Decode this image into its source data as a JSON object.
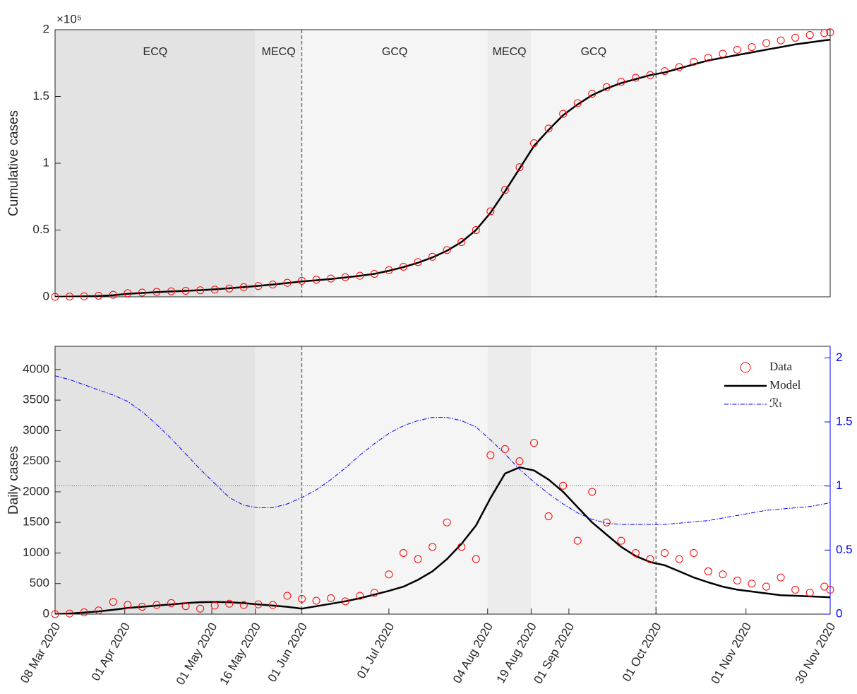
{
  "chart_data": [
    {
      "type": "scatter-line",
      "ylabel": "Cumulative cases",
      "y_multiplier": "×10⁵",
      "x": [
        "2020-03-08",
        "2020-03-13",
        "2020-03-18",
        "2020-03-23",
        "2020-03-28",
        "2020-04-02",
        "2020-04-07",
        "2020-04-12",
        "2020-04-17",
        "2020-04-22",
        "2020-04-27",
        "2020-05-02",
        "2020-05-07",
        "2020-05-12",
        "2020-05-17",
        "2020-05-22",
        "2020-05-27",
        "2020-06-01",
        "2020-06-06",
        "2020-06-11",
        "2020-06-16",
        "2020-06-21",
        "2020-06-26",
        "2020-07-01",
        "2020-07-06",
        "2020-07-11",
        "2020-07-16",
        "2020-07-21",
        "2020-07-26",
        "2020-07-31",
        "2020-08-05",
        "2020-08-10",
        "2020-08-15",
        "2020-08-20",
        "2020-08-25",
        "2020-08-30",
        "2020-09-04",
        "2020-09-09",
        "2020-09-14",
        "2020-09-19",
        "2020-09-24",
        "2020-09-29",
        "2020-10-04",
        "2020-10-09",
        "2020-10-14",
        "2020-10-19",
        "2020-10-24",
        "2020-10-29",
        "2020-11-03",
        "2020-11-08",
        "2020-11-13",
        "2020-11-18",
        "2020-11-23",
        "2020-11-28",
        "2020-11-30"
      ],
      "xlim": [
        "2020-03-08",
        "2020-11-30"
      ],
      "ylim": [
        0,
        2
      ],
      "yticks": [
        0,
        0.5,
        1,
        1.5,
        2
      ],
      "phases": [
        {
          "label": "ECQ",
          "start": "2020-03-08",
          "end": "2020-05-16",
          "color": "#e3e3e3"
        },
        {
          "label": "MECQ",
          "start": "2020-05-16",
          "end": "2020-06-01",
          "color": "#ececec"
        },
        {
          "label": "GCQ",
          "start": "2020-06-01",
          "end": "2020-08-04",
          "color": "#f5f5f5"
        },
        {
          "label": "MECQ",
          "start": "2020-08-04",
          "end": "2020-08-19",
          "color": "#ececec"
        },
        {
          "label": "GCQ",
          "start": "2020-08-19",
          "end": "2020-10-01",
          "color": "#f5f5f5"
        }
      ],
      "vlines": [
        "2020-06-01",
        "2020-10-01"
      ],
      "series": [
        {
          "color": "#ff0000",
          "marker": "circle",
          "values": [
            0,
            0.002,
            0.004,
            0.008,
            0.015,
            0.027,
            0.032,
            0.037,
            0.041,
            0.045,
            0.049,
            0.054,
            0.062,
            0.072,
            0.081,
            0.092,
            0.105,
            0.12,
            0.128,
            0.137,
            0.147,
            0.158,
            0.172,
            0.2,
            0.225,
            0.26,
            0.3,
            0.35,
            0.41,
            0.5,
            0.64,
            0.8,
            0.97,
            1.15,
            1.26,
            1.37,
            1.45,
            1.52,
            1.57,
            1.61,
            1.64,
            1.66,
            1.69,
            1.72,
            1.76,
            1.79,
            1.82,
            1.85,
            1.87,
            1.9,
            1.92,
            1.94,
            1.96,
            1.975,
            1.98
          ]
        },
        {
          "color": "#000000",
          "width": 2.5,
          "values": [
            0,
            0.001,
            0.003,
            0.006,
            0.012,
            0.022,
            0.029,
            0.035,
            0.04,
            0.045,
            0.05,
            0.056,
            0.064,
            0.073,
            0.082,
            0.092,
            0.103,
            0.115,
            0.124,
            0.134,
            0.145,
            0.157,
            0.172,
            0.195,
            0.222,
            0.255,
            0.295,
            0.345,
            0.41,
            0.5,
            0.63,
            0.79,
            0.96,
            1.13,
            1.25,
            1.36,
            1.44,
            1.51,
            1.56,
            1.6,
            1.63,
            1.66,
            1.68,
            1.71,
            1.74,
            1.77,
            1.79,
            1.81,
            1.83,
            1.85,
            1.87,
            1.89,
            1.905,
            1.92,
            1.925
          ]
        }
      ]
    },
    {
      "type": "scatter-line",
      "ylabel": "Daily cases",
      "x": [
        "2020-03-08",
        "2020-03-13",
        "2020-03-18",
        "2020-03-23",
        "2020-03-28",
        "2020-04-02",
        "2020-04-07",
        "2020-04-12",
        "2020-04-17",
        "2020-04-22",
        "2020-04-27",
        "2020-05-02",
        "2020-05-07",
        "2020-05-12",
        "2020-05-17",
        "2020-05-22",
        "2020-05-27",
        "2020-06-01",
        "2020-06-06",
        "2020-06-11",
        "2020-06-16",
        "2020-06-21",
        "2020-06-26",
        "2020-07-01",
        "2020-07-06",
        "2020-07-11",
        "2020-07-16",
        "2020-07-21",
        "2020-07-26",
        "2020-07-31",
        "2020-08-05",
        "2020-08-10",
        "2020-08-15",
        "2020-08-20",
        "2020-08-25",
        "2020-08-30",
        "2020-09-04",
        "2020-09-09",
        "2020-09-14",
        "2020-09-19",
        "2020-09-24",
        "2020-09-29",
        "2020-10-04",
        "2020-10-09",
        "2020-10-14",
        "2020-10-19",
        "2020-10-24",
        "2020-10-29",
        "2020-11-03",
        "2020-11-08",
        "2020-11-13",
        "2020-11-18",
        "2020-11-23",
        "2020-11-28",
        "2020-11-30"
      ],
      "xlim": [
        "2020-03-08",
        "2020-11-30"
      ],
      "xticks": [
        {
          "value": "2020-03-08",
          "label": "08 Mar 2020"
        },
        {
          "value": "2020-04-01",
          "label": "01 Apr 2020"
        },
        {
          "value": "2020-05-01",
          "label": "01 May 2020"
        },
        {
          "value": "2020-05-16",
          "label": "16 May 2020"
        },
        {
          "value": "2020-06-01",
          "label": "01 Jun 2020"
        },
        {
          "value": "2020-07-01",
          "label": "01 Jul 2020"
        },
        {
          "value": "2020-08-04",
          "label": "04 Aug 2020"
        },
        {
          "value": "2020-08-19",
          "label": "19 Aug 2020"
        },
        {
          "value": "2020-09-01",
          "label": "01 Sep 2020"
        },
        {
          "value": "2020-10-01",
          "label": "01 Oct 2020"
        },
        {
          "value": "2020-11-01",
          "label": "01 Nov 2020"
        },
        {
          "value": "2020-11-30",
          "label": "30 Nov 2020"
        }
      ],
      "ylim": [
        0,
        4380
      ],
      "yticks": [
        0,
        500,
        1000,
        1500,
        2000,
        2500,
        3000,
        3500,
        4000
      ],
      "y2lim": [
        0,
        2.09
      ],
      "y2ticks": [
        0,
        0.5,
        1,
        1.5,
        2
      ],
      "y2_color": "#0000ff",
      "y2_reference": 1,
      "vlines": [
        "2020-06-01",
        "2020-10-01"
      ],
      "legend": "upper right",
      "series": [
        {
          "name": "Data",
          "color": "#ff0000",
          "marker": "circle",
          "values": [
            0,
            10,
            30,
            60,
            200,
            150,
            120,
            150,
            180,
            130,
            90,
            140,
            170,
            150,
            160,
            150,
            300,
            250,
            220,
            260,
            210,
            300,
            350,
            650,
            1000,
            900,
            1100,
            1500,
            1100,
            900,
            2600,
            2700,
            2500,
            2800,
            1600,
            2100,
            1200,
            2000,
            1500,
            1200,
            1000,
            900,
            1000,
            900,
            1000,
            700,
            650,
            550,
            500,
            450,
            600,
            400,
            350,
            450,
            400
          ]
        },
        {
          "name": "Model",
          "color": "#000000",
          "width": 2.5,
          "values": [
            0,
            10,
            25,
            45,
            70,
            100,
            120,
            140,
            160,
            180,
            195,
            200,
            195,
            180,
            160,
            140,
            120,
            90,
            130,
            170,
            210,
            260,
            320,
            380,
            450,
            560,
            700,
            900,
            1150,
            1450,
            1900,
            2300,
            2400,
            2350,
            2200,
            2000,
            1750,
            1500,
            1300,
            1100,
            950,
            850,
            800,
            700,
            600,
            520,
            450,
            400,
            370,
            340,
            310,
            300,
            290,
            280,
            275
          ]
        },
        {
          "name": "ℛₜ",
          "color": "#0000ff",
          "width": 1,
          "dash": "dashdot",
          "axis": "y2",
          "values": [
            1.86,
            1.83,
            1.79,
            1.75,
            1.71,
            1.66,
            1.58,
            1.48,
            1.37,
            1.25,
            1.13,
            1.02,
            0.91,
            0.85,
            0.83,
            0.83,
            0.86,
            0.91,
            0.97,
            1.05,
            1.14,
            1.24,
            1.33,
            1.41,
            1.47,
            1.51,
            1.535,
            1.535,
            1.51,
            1.46,
            1.36,
            1.25,
            1.13,
            1.03,
            0.94,
            0.86,
            0.79,
            0.74,
            0.71,
            0.7,
            0.7,
            0.7,
            0.7,
            0.71,
            0.72,
            0.73,
            0.75,
            0.77,
            0.79,
            0.81,
            0.82,
            0.83,
            0.84,
            0.86,
            0.87
          ]
        }
      ]
    }
  ]
}
